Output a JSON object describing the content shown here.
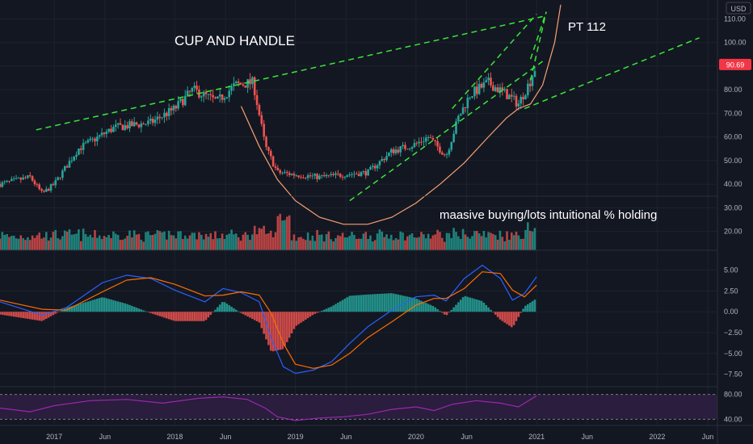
{
  "header": {
    "currency": "USD"
  },
  "price_badge": {
    "value": "90.69",
    "color": "#f23645"
  },
  "annotations": {
    "title": "CUP AND HANDLE",
    "target": "PT 112",
    "volume_note": "maasive buying/lots intuitional % holding"
  },
  "colors": {
    "background": "#131722",
    "grid": "#1e222d",
    "up": "#26a69a",
    "down": "#ef5350",
    "trendline": "#39e639",
    "cup_curve": "#f7a072",
    "macd_line": "#2962ff",
    "signal_line": "#ff6d00",
    "rsi_line": "#9c27b0",
    "rsi_band": "#2a1d3d"
  },
  "time_axis": {
    "labels": [
      "2017",
      "Jun",
      "2018",
      "Jun",
      "2019",
      "Jun",
      "2020",
      "Jun",
      "2021",
      "Jun",
      "2022",
      "Jun"
    ],
    "ticks": [
      2017.0,
      2017.42,
      2018.0,
      2018.42,
      2019.0,
      2019.42,
      2020.0,
      2020.42,
      2021.0,
      2021.42,
      2022.0,
      2022.42
    ],
    "range": [
      2016.55,
      2022.5
    ]
  },
  "chart_data": [
    {
      "type": "candlestick",
      "title": "",
      "ylim": [
        12,
        118
      ],
      "yticks": [
        20,
        30,
        40,
        50,
        60,
        70,
        80,
        90,
        100,
        110
      ],
      "ytick_labels": [
        "20.00",
        "30.00",
        "40.00",
        "50.00",
        "60.00",
        "70.00",
        "80.00",
        "90.00",
        "100.00",
        "110.00"
      ],
      "last_price": 90.69,
      "anchors": {
        "x": [
          2016.55,
          2016.8,
          2016.9,
          2017.0,
          2017.2,
          2017.5,
          2017.8,
          2018.0,
          2018.15,
          2018.35,
          2018.5,
          2018.65,
          2018.75,
          2018.85,
          2019.0,
          2019.2,
          2019.4,
          2019.6,
          2019.8,
          2020.0,
          2020.1,
          2020.25,
          2020.35,
          2020.45,
          2020.6,
          2020.75,
          2020.85,
          2020.95,
          2021.0
        ],
        "y": [
          40,
          43,
          36,
          40,
          55,
          64,
          66,
          72,
          80,
          75,
          82,
          83,
          56,
          45,
          44,
          43,
          44,
          45,
          54,
          57,
          60,
          52,
          68,
          78,
          83,
          78,
          74,
          84,
          91
        ]
      },
      "volume": {
        "range": [
          0,
          40
        ]
      },
      "trendlines": [
        {
          "name": "upper-resistance",
          "points": [
            [
              2016.85,
              63
            ],
            [
              2021.05,
              111
            ]
          ]
        },
        {
          "name": "channel-upper",
          "points": [
            [
              2020.3,
              72
            ],
            [
              2021.0,
              112
            ]
          ]
        },
        {
          "name": "channel-lower",
          "points": [
            [
              2019.45,
              33
            ],
            [
              2021.05,
              92
            ]
          ]
        },
        {
          "name": "breakout-upper",
          "points": [
            [
              2020.95,
              93
            ],
            [
              2021.08,
              113
            ]
          ]
        },
        {
          "name": "breakout-lower",
          "points": [
            [
              2020.95,
              84
            ],
            [
              2021.08,
              113
            ]
          ]
        },
        {
          "name": "support-projection",
          "points": [
            [
              2020.9,
              72
            ],
            [
              2022.35,
              102
            ]
          ]
        }
      ],
      "cup_curve": {
        "x": [
          2018.55,
          2018.7,
          2018.85,
          2019.0,
          2019.2,
          2019.4,
          2019.6,
          2019.8,
          2020.0,
          2020.2,
          2020.4,
          2020.6,
          2020.75,
          2020.85,
          2020.95,
          2021.05,
          2021.15,
          2021.2
        ],
        "y": [
          73,
          56,
          42,
          33,
          26,
          23,
          23,
          26,
          32,
          40,
          49,
          60,
          68,
          72,
          74,
          82,
          100,
          116
        ]
      }
    },
    {
      "type": "line",
      "title": "",
      "ylim": [
        -9,
        7.2
      ],
      "yticks": [
        5,
        2.5,
        0,
        -2.5,
        -5,
        -7.5
      ],
      "ytick_labels": [
        "5.00",
        "2.50",
        "0.00",
        "−2.50",
        "−5.00",
        "−7.50"
      ],
      "macd": {
        "x": [
          2016.55,
          2016.9,
          2017.1,
          2017.4,
          2017.6,
          2017.8,
          2018.0,
          2018.25,
          2018.4,
          2018.55,
          2018.7,
          2018.8,
          2018.9,
          2019.0,
          2019.15,
          2019.3,
          2019.45,
          2019.6,
          2019.8,
          2020.0,
          2020.15,
          2020.25,
          2020.4,
          2020.55,
          2020.7,
          2020.8,
          2020.9,
          2021.0
        ],
        "y": [
          1.2,
          -0.4,
          0.5,
          3.5,
          4.4,
          4.0,
          2.6,
          1.2,
          2.8,
          2.3,
          1.2,
          -3.2,
          -6.6,
          -7.4,
          -7.0,
          -6.0,
          -3.8,
          -1.8,
          0.2,
          1.8,
          2.0,
          1.3,
          4.0,
          5.6,
          4.0,
          1.4,
          2.2,
          4.2
        ]
      },
      "signal": {
        "x": [
          2016.55,
          2016.9,
          2017.1,
          2017.4,
          2017.6,
          2017.8,
          2018.0,
          2018.25,
          2018.4,
          2018.55,
          2018.7,
          2018.8,
          2018.9,
          2019.0,
          2019.15,
          2019.3,
          2019.45,
          2019.6,
          2019.8,
          2020.0,
          2020.15,
          2020.25,
          2020.4,
          2020.55,
          2020.7,
          2020.8,
          2020.9,
          2021.0
        ],
        "y": [
          1.4,
          0.3,
          0.2,
          2.4,
          3.8,
          4.1,
          3.3,
          1.9,
          2.0,
          2.4,
          2.0,
          -0.2,
          -3.8,
          -6.3,
          -6.8,
          -6.4,
          -5.0,
          -3.1,
          -1.2,
          0.8,
          1.6,
          1.6,
          2.8,
          4.8,
          4.6,
          2.6,
          1.8,
          3.2
        ]
      }
    },
    {
      "type": "line",
      "title": "",
      "ylim": [
        30,
        90
      ],
      "yticks": [
        80,
        40
      ],
      "ytick_labels": [
        "80.00",
        "40.00"
      ],
      "band": [
        40,
        80
      ],
      "rsi": {
        "x": [
          2016.55,
          2016.8,
          2017.0,
          2017.3,
          2017.6,
          2017.9,
          2018.2,
          2018.4,
          2018.6,
          2018.75,
          2018.85,
          2019.0,
          2019.2,
          2019.4,
          2019.6,
          2019.8,
          2020.0,
          2020.15,
          2020.3,
          2020.5,
          2020.7,
          2020.85,
          2021.0
        ],
        "y": [
          58,
          52,
          62,
          70,
          72,
          66,
          74,
          76,
          72,
          58,
          44,
          38,
          42,
          44,
          48,
          56,
          60,
          54,
          64,
          70,
          66,
          60,
          78
        ]
      }
    }
  ]
}
